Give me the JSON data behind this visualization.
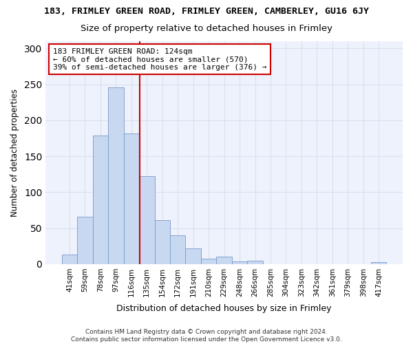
{
  "title": "183, FRIMLEY GREEN ROAD, FRIMLEY GREEN, CAMBERLEY, GU16 6JY",
  "subtitle": "Size of property relative to detached houses in Frimley",
  "xlabel": "Distribution of detached houses by size in Frimley",
  "ylabel": "Number of detached properties",
  "categories": [
    "41sqm",
    "59sqm",
    "78sqm",
    "97sqm",
    "116sqm",
    "135sqm",
    "154sqm",
    "172sqm",
    "191sqm",
    "210sqm",
    "229sqm",
    "248sqm",
    "266sqm",
    "285sqm",
    "304sqm",
    "323sqm",
    "342sqm",
    "361sqm",
    "379sqm",
    "398sqm",
    "417sqm"
  ],
  "values": [
    13,
    66,
    179,
    246,
    182,
    122,
    61,
    40,
    22,
    8,
    10,
    4,
    5,
    0,
    0,
    0,
    0,
    0,
    0,
    0,
    3
  ],
  "bar_color": "#c8d8f0",
  "bar_edge_color": "#7799cc",
  "grid_color": "#d8e0ee",
  "vline_x_index": 4.55,
  "vline_color": "#cc0000",
  "annotation_text": "183 FRIMLEY GREEN ROAD: 124sqm\n← 60% of detached houses are smaller (570)\n39% of semi-detached houses are larger (376) →",
  "annotation_box_color": "#ffffff",
  "annotation_box_edge": "#cc0000",
  "footer": "Contains HM Land Registry data © Crown copyright and database right 2024.\nContains public sector information licensed under the Open Government Licence v3.0.",
  "ylim": [
    0,
    310
  ],
  "background_color": "#ffffff",
  "plot_bg_color": "#eef2fc"
}
